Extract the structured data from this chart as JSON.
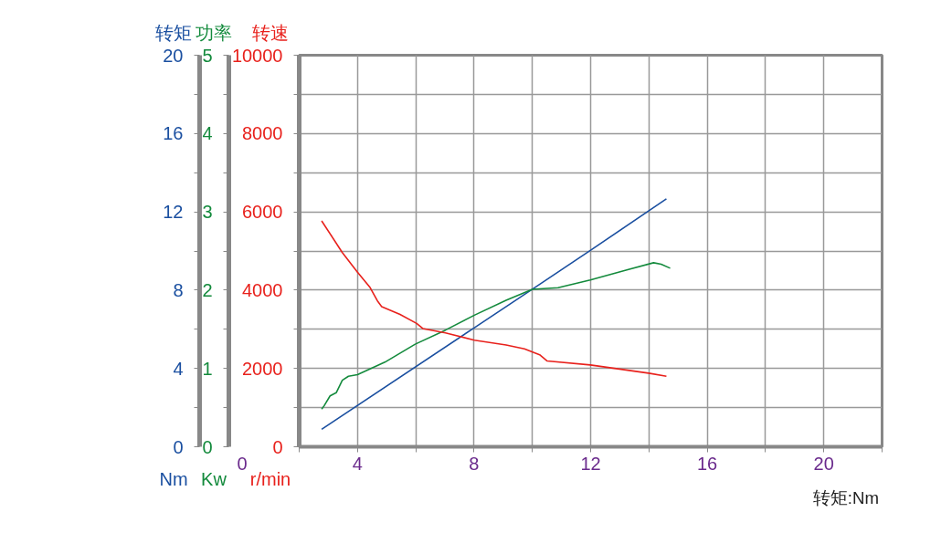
{
  "chart_data": {
    "type": "line",
    "xlabel": "转矩:Nm",
    "ylabel": "转矩",
    "y2label": "功率",
    "y3label": "转速",
    "xlim": [
      2,
      22
    ],
    "xticks": [
      {
        "value": 2,
        "label": null
      },
      4,
      {
        "value": 6,
        "label": null
      },
      8,
      {
        "value": 10,
        "label": null
      },
      12,
      {
        "value": 14,
        "label": null
      },
      16,
      {
        "value": 18,
        "label": null
      },
      20,
      {
        "value": 22,
        "label": null
      }
    ],
    "ylim": [
      0,
      20
    ],
    "yticks": [
      0,
      {
        "value": 2,
        "label": null
      },
      4,
      {
        "value": 6,
        "label": null
      },
      8,
      {
        "value": 10,
        "label": null
      },
      12,
      {
        "value": 14,
        "label": null
      },
      16,
      {
        "value": 18,
        "label": null
      },
      20
    ],
    "y2lim": [
      0,
      5
    ],
    "y2ticks": [
      0,
      {
        "value": 0.5,
        "label": null
      },
      1,
      {
        "value": 1.5,
        "label": null
      },
      2,
      {
        "value": 2.5,
        "label": null
      },
      3,
      {
        "value": 3.5,
        "label": null
      },
      4,
      {
        "value": 4.5,
        "label": null
      },
      5
    ],
    "y3lim": [
      0,
      10000
    ],
    "y3ticks": [
      0,
      {
        "value": 1000,
        "label": null
      },
      2000,
      {
        "value": 3000,
        "label": null
      },
      4000,
      {
        "value": 5000,
        "label": null
      },
      6000,
      {
        "value": 7000,
        "label": null
      },
      8000,
      {
        "value": 9000,
        "label": null
      },
      10000
    ],
    "grid": true,
    "series": [
      {
        "axis": "y",
        "color": "#1a4fa0",
        "x": [
          2.77,
          8.01,
          10.0,
          11.99,
          14.6
        ],
        "values": [
          0.89,
          6.08,
          8.05,
          10.03,
          12.66
        ]
      },
      {
        "axis": "y2",
        "color": "#138a3c",
        "x": [
          2.77,
          2.85,
          3.06,
          3.27,
          3.48,
          3.69,
          4.0,
          4.94,
          5.98,
          7.02,
          8.01,
          9.1,
          10.0,
          10.88,
          11.99,
          13.27,
          14.16,
          14.42,
          14.73
        ],
        "values": [
          0.48,
          0.52,
          0.65,
          0.69,
          0.85,
          0.9,
          0.92,
          1.08,
          1.31,
          1.49,
          1.68,
          1.87,
          2.01,
          2.03,
          2.13,
          2.26,
          2.35,
          2.33,
          2.28
        ]
      },
      {
        "axis": "y3",
        "color": "#e8211c",
        "x": [
          2.77,
          3.48,
          4.0,
          4.42,
          4.68,
          4.83,
          5.46,
          6.03,
          6.24,
          7.02,
          8.01,
          9.1,
          9.73,
          10.25,
          10.51,
          11.99,
          13.99,
          14.6
        ],
        "values": [
          5770,
          4960,
          4460,
          4080,
          3730,
          3580,
          3380,
          3150,
          3020,
          2910,
          2720,
          2600,
          2500,
          2350,
          2190,
          2090,
          1880,
          1800
        ]
      }
    ],
    "annotations": [
      "Nm",
      "Kw",
      "r/min",
      "0"
    ]
  }
}
